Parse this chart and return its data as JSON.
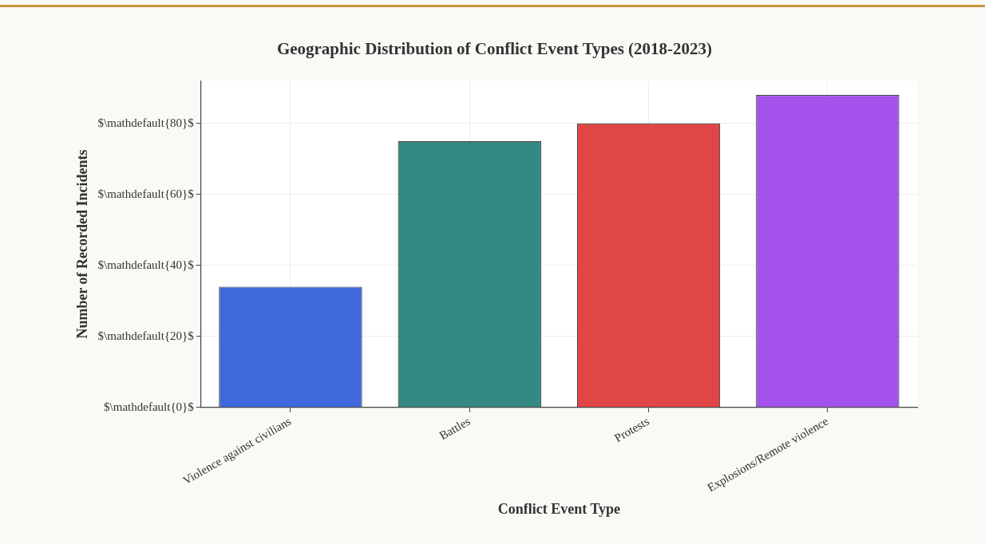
{
  "chart_data": {
    "type": "bar",
    "title": "Geographic Distribution of Conflict Event Types (2018-2023)",
    "xlabel": "Conflict Event Type",
    "ylabel": "Number of Recorded Incidents",
    "categories": [
      "Violence against civilians",
      "Battles",
      "Protests",
      "Explosions/Remote violence"
    ],
    "values": [
      34,
      75,
      80,
      88
    ],
    "colors": [
      "#3e68dc",
      "#348983",
      "#e04646",
      "#a352eb"
    ],
    "ylim": [
      0,
      92
    ],
    "yticks": [
      {
        "value": 0,
        "label": "$\\mathdefault{0}$"
      },
      {
        "value": 20,
        "label": "$\\mathdefault{20}$"
      },
      {
        "value": 40,
        "label": "$\\mathdefault{40}$"
      },
      {
        "value": 60,
        "label": "$\\mathdefault{60}$"
      },
      {
        "value": 80,
        "label": "$\\mathdefault{80}$"
      }
    ],
    "grid": true
  }
}
